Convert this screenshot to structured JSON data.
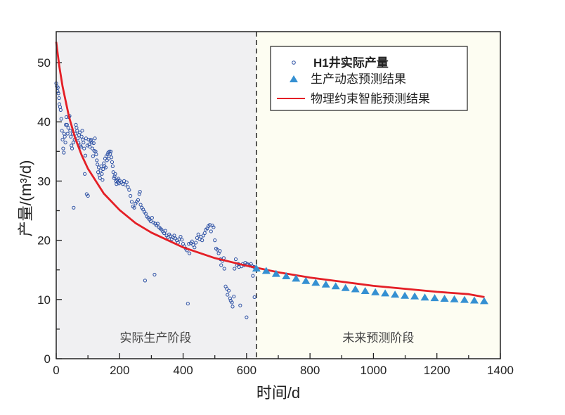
{
  "chart_data": {
    "type": "scatter",
    "xlabel": "时间/d",
    "ylabel": "产量/(m³/d)",
    "xlim": [
      0,
      1400
    ],
    "ylim": [
      0,
      55
    ],
    "xticks": [
      0,
      200,
      400,
      600,
      800,
      1000,
      1200,
      1400
    ],
    "yticks": [
      0,
      10,
      20,
      30,
      40,
      50
    ],
    "grid": false,
    "legend_position": "top-right",
    "divider_x": 631,
    "regions": [
      {
        "label": "实际生产阶段",
        "x_range": [
          0,
          631
        ],
        "color": "#f0f0f2"
      },
      {
        "label": "未来预测阶段",
        "x_range": [
          631,
          1400
        ],
        "color": "#fdfdf2"
      }
    ],
    "series": [
      {
        "name": "H1井实际产量",
        "kind": "scatter-circle",
        "color": "#2c50a4",
        "points": [
          [
            0,
            46.5
          ],
          [
            2,
            46
          ],
          [
            4,
            45.2
          ],
          [
            5,
            45.8
          ],
          [
            7,
            44.8
          ],
          [
            9,
            44
          ],
          [
            10,
            43
          ],
          [
            12,
            42.5
          ],
          [
            14,
            42
          ],
          [
            16,
            40.5
          ],
          [
            18,
            38.5
          ],
          [
            20,
            37
          ],
          [
            22,
            35.5
          ],
          [
            24,
            34.8
          ],
          [
            25,
            38
          ],
          [
            27,
            37.5
          ],
          [
            29,
            36.5
          ],
          [
            30,
            39.5
          ],
          [
            32,
            40.8
          ],
          [
            34,
            39.5
          ],
          [
            36,
            38
          ],
          [
            38,
            39
          ],
          [
            40,
            40.8
          ],
          [
            42,
            41
          ],
          [
            44,
            38.5
          ],
          [
            46,
            37.5
          ],
          [
            48,
            36
          ],
          [
            50,
            35.5
          ],
          [
            52,
            38
          ],
          [
            54,
            36.5
          ],
          [
            55,
            25.5
          ],
          [
            58,
            37
          ],
          [
            60,
            38
          ],
          [
            62,
            39.5
          ],
          [
            64,
            39
          ],
          [
            66,
            38.5
          ],
          [
            68,
            37.2
          ],
          [
            70,
            36.5
          ],
          [
            72,
            37.8
          ],
          [
            74,
            38.2
          ],
          [
            76,
            36
          ],
          [
            78,
            35.8
          ],
          [
            80,
            37.5
          ],
          [
            82,
            38.5
          ],
          [
            84,
            37
          ],
          [
            86,
            36.5
          ],
          [
            88,
            35.5
          ],
          [
            90,
            31.2
          ],
          [
            92,
            34.3
          ],
          [
            94,
            37.2
          ],
          [
            96,
            27.8
          ],
          [
            98,
            36
          ],
          [
            100,
            27.5
          ],
          [
            102,
            37
          ],
          [
            104,
            36.2
          ],
          [
            106,
            35.8
          ],
          [
            108,
            36.8
          ],
          [
            110,
            37
          ],
          [
            112,
            36.5
          ],
          [
            114,
            35.5
          ],
          [
            116,
            34.2
          ],
          [
            118,
            36.4
          ],
          [
            120,
            35.1
          ],
          [
            122,
            37.2
          ],
          [
            124,
            35
          ],
          [
            126,
            34.5
          ],
          [
            128,
            33.5
          ],
          [
            130,
            32.8
          ],
          [
            132,
            31.5
          ],
          [
            134,
            32.3
          ],
          [
            136,
            31
          ],
          [
            138,
            30.5
          ],
          [
            140,
            31.8
          ],
          [
            142,
            32.5
          ],
          [
            144,
            31.2
          ],
          [
            146,
            30.2
          ],
          [
            148,
            32
          ],
          [
            150,
            33
          ],
          [
            152,
            32.5
          ],
          [
            154,
            33.8
          ],
          [
            156,
            32.3
          ],
          [
            158,
            34.2
          ],
          [
            160,
            33.5
          ],
          [
            162,
            34.5
          ],
          [
            164,
            34.8
          ],
          [
            166,
            33.8
          ],
          [
            168,
            35
          ],
          [
            170,
            34.6
          ],
          [
            172,
            35
          ],
          [
            174,
            34
          ],
          [
            176,
            33.2
          ],
          [
            178,
            32.5
          ],
          [
            180,
            31.5
          ],
          [
            182,
            30.5
          ],
          [
            184,
            30.8
          ],
          [
            186,
            31.2
          ],
          [
            188,
            30
          ],
          [
            190,
            29.5
          ],
          [
            192,
            30.2
          ],
          [
            194,
            29.8
          ],
          [
            196,
            30.4
          ],
          [
            198,
            29.6
          ],
          [
            200,
            30.1
          ],
          [
            205,
            29.8
          ],
          [
            210,
            29.5
          ],
          [
            214,
            30
          ],
          [
            218,
            29.4
          ],
          [
            222,
            29.8
          ],
          [
            226,
            29
          ],
          [
            230,
            28.5
          ],
          [
            234,
            27.5
          ],
          [
            238,
            26.5
          ],
          [
            242,
            25.7
          ],
          [
            246,
            25.5
          ],
          [
            250,
            26.2
          ],
          [
            254,
            26.5
          ],
          [
            258,
            26.8
          ],
          [
            262,
            27.8
          ],
          [
            264,
            28.2
          ],
          [
            266,
            26
          ],
          [
            270,
            25.5
          ],
          [
            274,
            25.2
          ],
          [
            278,
            24.8
          ],
          [
            280,
            13.2
          ],
          [
            282,
            24.5
          ],
          [
            286,
            24
          ],
          [
            290,
            23.8
          ],
          [
            294,
            23.5
          ],
          [
            298,
            23.2
          ],
          [
            302,
            23.8
          ],
          [
            306,
            23
          ],
          [
            310,
            14.2
          ],
          [
            312,
            22.8
          ],
          [
            316,
            22.5
          ],
          [
            320,
            22.8
          ],
          [
            324,
            22.2
          ],
          [
            328,
            22
          ],
          [
            332,
            21.8
          ],
          [
            336,
            21.5
          ],
          [
            340,
            21.2
          ],
          [
            344,
            21.6
          ],
          [
            348,
            20.8
          ],
          [
            352,
            20.5
          ],
          [
            356,
            21
          ],
          [
            360,
            20.7
          ],
          [
            364,
            20.2
          ],
          [
            368,
            20.5
          ],
          [
            372,
            20.8
          ],
          [
            376,
            20.3
          ],
          [
            380,
            20
          ],
          [
            384,
            19.6
          ],
          [
            388,
            20.2
          ],
          [
            392,
            20.6
          ],
          [
            396,
            20.1
          ],
          [
            400,
            19.4
          ],
          [
            404,
            19
          ],
          [
            408,
            18.6
          ],
          [
            412,
            18.3
          ],
          [
            415,
            9.3
          ],
          [
            418,
            19.4
          ],
          [
            420,
            17.8
          ],
          [
            424,
            19.5
          ],
          [
            428,
            19.8
          ],
          [
            432,
            19.2
          ],
          [
            436,
            18.8
          ],
          [
            440,
            19.6
          ],
          [
            444,
            20.4
          ],
          [
            448,
            21
          ],
          [
            452,
            20.2
          ],
          [
            456,
            20.6
          ],
          [
            460,
            20
          ],
          [
            464,
            20.8
          ],
          [
            468,
            21.2
          ],
          [
            472,
            21.8
          ],
          [
            476,
            22
          ],
          [
            480,
            22.4
          ],
          [
            484,
            22.6
          ],
          [
            488,
            21.5
          ],
          [
            492,
            22.5
          ],
          [
            496,
            22.2
          ],
          [
            500,
            20
          ],
          [
            504,
            18.6
          ],
          [
            508,
            18.4
          ],
          [
            512,
            17.8
          ],
          [
            516,
            18.2
          ],
          [
            518,
            16.8
          ],
          [
            520,
            15.8
          ],
          [
            524,
            16.5
          ],
          [
            528,
            17
          ],
          [
            530,
            15.2
          ],
          [
            534,
            12.2
          ],
          [
            538,
            11.8
          ],
          [
            540,
            10.8
          ],
          [
            544,
            11.5
          ],
          [
            548,
            10.2
          ],
          [
            550,
            9.8
          ],
          [
            554,
            9.5
          ],
          [
            556,
            8.8
          ],
          [
            560,
            10.5
          ],
          [
            562,
            15.2
          ],
          [
            566,
            16.8
          ],
          [
            570,
            15.8
          ],
          [
            574,
            16
          ],
          [
            576,
            15.5
          ],
          [
            580,
            9
          ],
          [
            584,
            15.6
          ],
          [
            588,
            16
          ],
          [
            592,
            15.8
          ],
          [
            596,
            16.2
          ],
          [
            600,
            7
          ],
          [
            602,
            16
          ],
          [
            606,
            15.9
          ],
          [
            610,
            15.7
          ],
          [
            614,
            16
          ],
          [
            618,
            15.6
          ],
          [
            620,
            14
          ],
          [
            624,
            15.5
          ],
          [
            625,
            10.4
          ],
          [
            628,
            15.4
          ]
        ]
      },
      {
        "name": "生产动态预测结果",
        "kind": "scatter-triangle",
        "color": "#3590d2",
        "x": [
          631,
          662,
          693,
          725,
          756,
          787,
          818,
          850,
          881,
          912,
          943,
          974,
          1006,
          1037,
          1068,
          1099,
          1130,
          1162,
          1193,
          1224,
          1255,
          1287,
          1318,
          1349
        ],
        "y": [
          15.2,
          14.8,
          14.3,
          13.9,
          13.5,
          13.1,
          12.8,
          12.5,
          12.2,
          11.9,
          11.7,
          11.4,
          11.2,
          11.0,
          10.8,
          10.6,
          10.5,
          10.3,
          10.2,
          10.1,
          10.0,
          9.9,
          9.8,
          9.7
        ]
      },
      {
        "name": "物理约束智能预测结果",
        "kind": "line",
        "color": "#e41f26",
        "x": [
          0,
          5,
          10,
          20,
          40,
          60,
          80,
          100,
          150,
          200,
          250,
          300,
          400,
          500,
          600,
          700,
          800,
          900,
          1000,
          1100,
          1200,
          1300,
          1350
        ],
        "y": [
          53.5,
          51.3,
          49.3,
          46.0,
          40.9,
          37.2,
          34.4,
          32.1,
          27.9,
          25.1,
          22.9,
          21.3,
          18.8,
          17.0,
          15.7,
          14.6,
          13.7,
          13.0,
          12.3,
          11.8,
          11.3,
          10.9,
          10.4
        ]
      }
    ]
  }
}
